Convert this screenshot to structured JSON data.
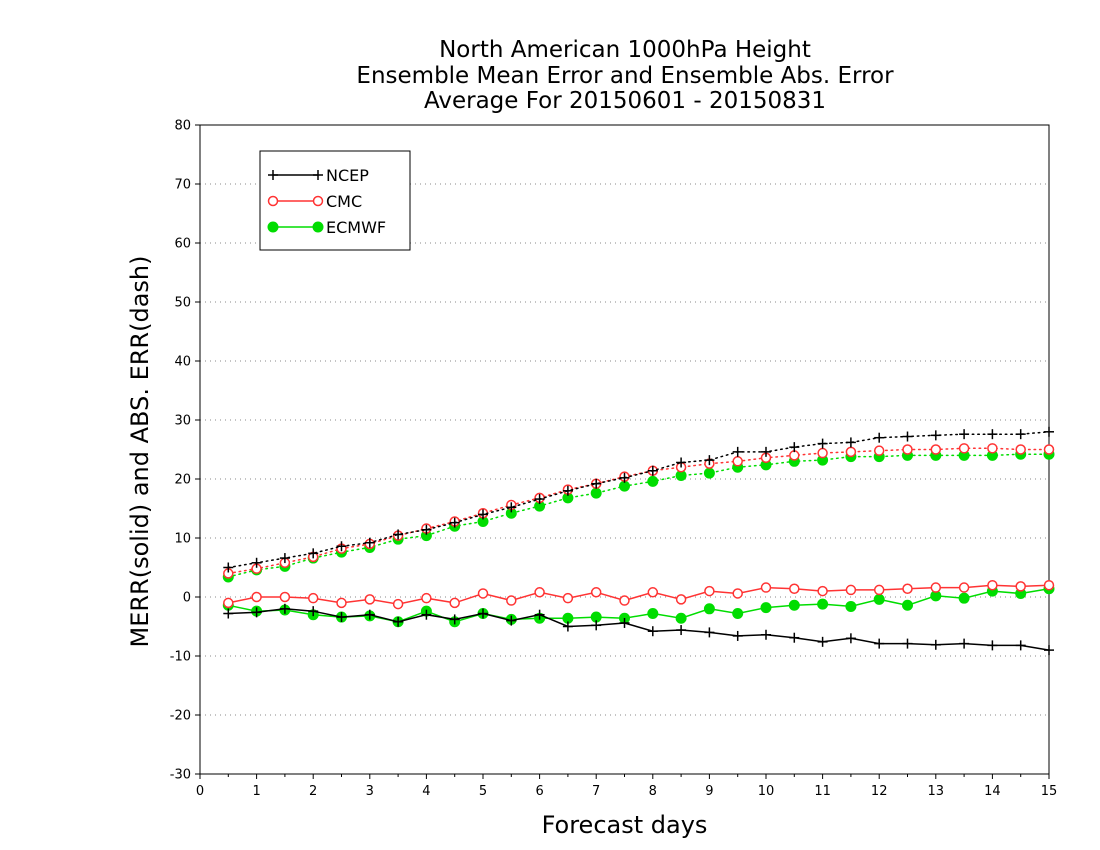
{
  "chart_data": {
    "type": "line",
    "title": [
      "North American 1000hPa Height",
      "Ensemble Mean Error and Ensemble Abs. Error",
      "Average For 20150601 - 20150831"
    ],
    "xlabel": "Forecast days",
    "ylabel": "MERR(solid) and ABS. ERR(dash)",
    "xlim": [
      0,
      15
    ],
    "ylim": [
      -30,
      80
    ],
    "x_ticks": [
      "0",
      "1",
      "2",
      "3",
      "4",
      "5",
      "6",
      "7",
      "8",
      "9",
      "10",
      "11",
      "12",
      "13",
      "14",
      "15"
    ],
    "y_ticks": [
      "-30",
      "-20",
      "-10",
      "0",
      "10",
      "20",
      "30",
      "40",
      "50",
      "60",
      "70",
      "80"
    ],
    "grid": "horizontal-dotted",
    "legend_position": "top-left",
    "x": [
      0.5,
      1.0,
      1.5,
      2.0,
      2.5,
      3.0,
      3.5,
      4.0,
      4.5,
      5.0,
      5.5,
      6.0,
      6.5,
      7.0,
      7.5,
      8.0,
      8.5,
      9.0,
      9.5,
      10.0,
      10.5,
      11.0,
      11.5,
      12.0,
      12.5,
      13.0,
      13.5,
      14.0,
      14.5,
      15.0
    ],
    "series": [
      {
        "name": "NCEP",
        "color": "#000000",
        "marker": "plus",
        "merr": [
          -2.8,
          -2.6,
          -2.0,
          -2.4,
          -3.4,
          -3.0,
          -4.2,
          -3.0,
          -3.8,
          -2.8,
          -4.0,
          -3.0,
          -5.0,
          -4.8,
          -4.4,
          -5.8,
          -5.6,
          -6.0,
          -6.6,
          -6.4,
          -6.9,
          -7.6,
          -7.0,
          -7.9,
          -7.9,
          -8.1,
          -7.9,
          -8.2,
          -8.2,
          -9.0
        ],
        "abs_err": [
          5.0,
          5.8,
          6.6,
          7.4,
          8.6,
          9.2,
          10.6,
          11.4,
          12.6,
          14.0,
          15.2,
          16.6,
          18.0,
          19.2,
          20.2,
          21.4,
          22.8,
          23.2,
          24.6,
          24.6,
          25.4,
          26.0,
          26.2,
          27.0,
          27.2,
          27.4,
          27.6,
          27.6,
          27.6,
          28.0
        ]
      },
      {
        "name": "CMC",
        "color": "#ff3333",
        "marker": "open-circle",
        "merr": [
          -1.0,
          0.0,
          0.0,
          -0.2,
          -1.0,
          -0.4,
          -1.2,
          -0.2,
          -1.0,
          0.6,
          -0.6,
          0.8,
          -0.2,
          0.8,
          -0.6,
          0.8,
          -0.4,
          1.0,
          0.6,
          1.6,
          1.4,
          1.0,
          1.2,
          1.2,
          1.4,
          1.6,
          1.6,
          2.0,
          1.8,
          2.0
        ],
        "abs_err": [
          4.0,
          4.8,
          5.8,
          6.8,
          8.2,
          9.0,
          10.4,
          11.6,
          12.8,
          14.2,
          15.6,
          16.8,
          18.2,
          19.2,
          20.4,
          21.4,
          22.0,
          22.6,
          23.0,
          23.6,
          24.0,
          24.4,
          24.6,
          24.8,
          25.0,
          25.0,
          25.2,
          25.2,
          25.0,
          25.0
        ]
      },
      {
        "name": "ECMWF",
        "color": "#00dd00",
        "marker": "filled-circle",
        "merr": [
          -1.4,
          -2.4,
          -2.2,
          -3.0,
          -3.4,
          -3.2,
          -4.2,
          -2.4,
          -4.2,
          -2.8,
          -3.8,
          -3.6,
          -3.6,
          -3.4,
          -3.6,
          -2.8,
          -3.6,
          -2.0,
          -2.8,
          -1.8,
          -1.4,
          -1.2,
          -1.6,
          -0.4,
          -1.4,
          0.2,
          -0.2,
          1.0,
          0.6,
          1.4
        ],
        "abs_err": [
          3.4,
          4.6,
          5.2,
          6.6,
          7.6,
          8.4,
          9.8,
          10.4,
          12.0,
          12.8,
          14.2,
          15.4,
          16.8,
          17.6,
          18.8,
          19.6,
          20.6,
          21.0,
          22.0,
          22.4,
          23.0,
          23.2,
          23.8,
          23.8,
          24.0,
          24.0,
          24.0,
          24.0,
          24.2,
          24.2
        ]
      }
    ]
  }
}
